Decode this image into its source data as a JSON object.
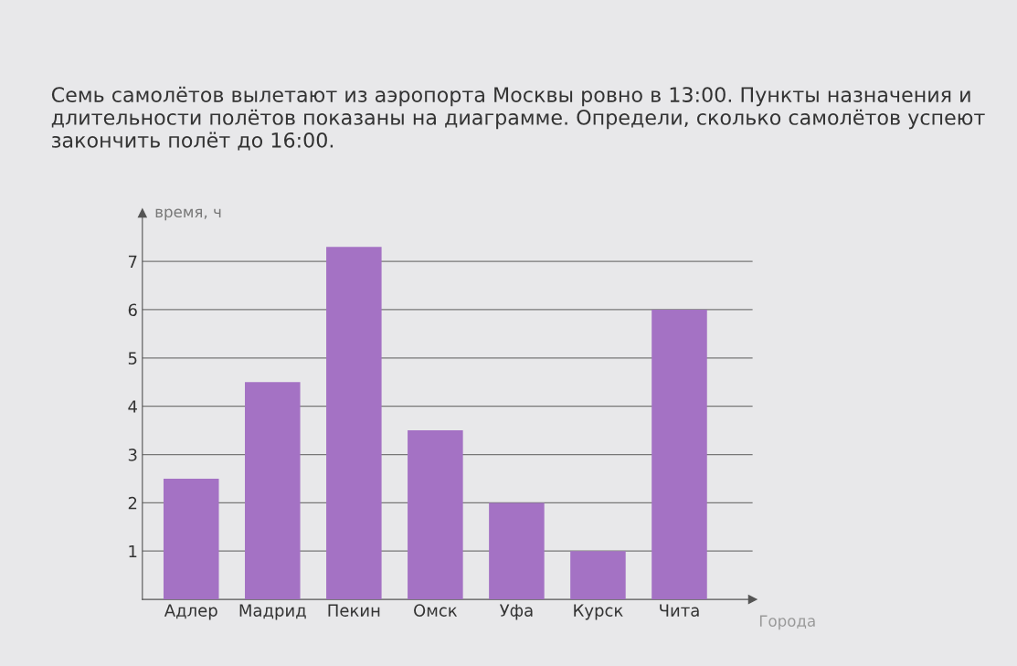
{
  "chart_data": {
    "type": "bar",
    "title": "Семь самолётов вылетают из аэропорта Москвы ровно в 13:00. Пункты назначения и длительности полётов показаны на диаграмме. Определи, сколько самолётов успеют закончить полёт до 16:00.",
    "xlabel": "Города",
    "ylabel": "время, ч",
    "categories": [
      "Адлер",
      "Мадрид",
      "Пекин",
      "Омск",
      "Уфа",
      "Курск",
      "Чита"
    ],
    "values": [
      2.5,
      4.5,
      7.3,
      3.5,
      2,
      1,
      6
    ],
    "color": "#a472c4",
    "ylim": [
      0,
      8
    ],
    "yticks": [
      1,
      2,
      3,
      4,
      5,
      6,
      7
    ],
    "grid": "y",
    "legend": false
  }
}
